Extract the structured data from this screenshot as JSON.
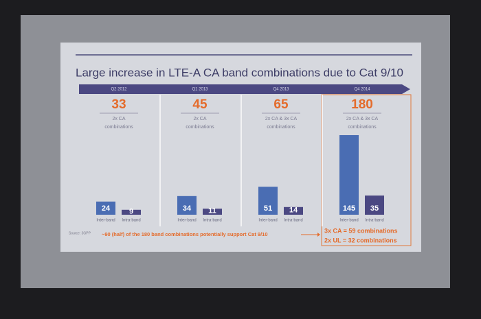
{
  "chart_data": {
    "type": "bar",
    "title": "Large increase in LTE-A CA band combinations due to Cat 9/10",
    "categories": [
      "Q2 2012",
      "Q1 2013",
      "Q4 2013",
      "Q4 2014"
    ],
    "totals": [
      33,
      45,
      65,
      180
    ],
    "descriptions": [
      "2x CA",
      "2x CA",
      "2x CA & 3x CA",
      "2x CA & 3x CA"
    ],
    "description_unit": "combinations",
    "series": [
      {
        "name": "Inter-band",
        "color": "#4a6db3",
        "values": [
          24,
          34,
          51,
          145
        ]
      },
      {
        "name": "Intra-band",
        "color": "#4b4882",
        "values": [
          9,
          11,
          14,
          35
        ]
      }
    ],
    "footnote": "~90 (half) of the 180 band combinations potentially support Cat 9/10",
    "callouts": [
      "3x CA = 59 combinations",
      "2x UL = 32 combinations"
    ],
    "source": "Source: 3GPP"
  }
}
